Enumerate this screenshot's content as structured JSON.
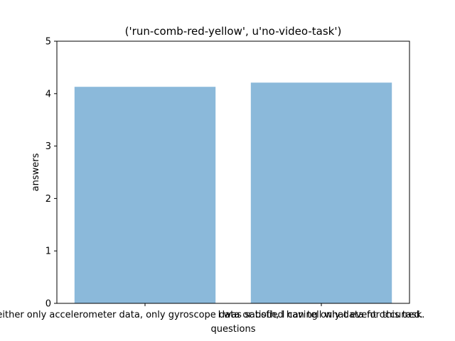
{
  "chart_data": {
    "type": "bar",
    "title": "('run-comb-red-yellow', u'no-video-task')",
    "xlabel": "questions",
    "ylabel": "answers",
    "categories": [
      "When I look at the graph of either only accelerometer data, only gyroscope data or both, I can tell what event occurred.",
      "I was satisfied having only data for this task."
    ],
    "values": [
      4.13,
      4.21
    ],
    "ylim": [
      0,
      5
    ],
    "yticks": [
      0,
      1,
      2,
      3,
      4,
      5
    ],
    "bar_color": "#8bb9da",
    "grid": false,
    "legend": false
  }
}
